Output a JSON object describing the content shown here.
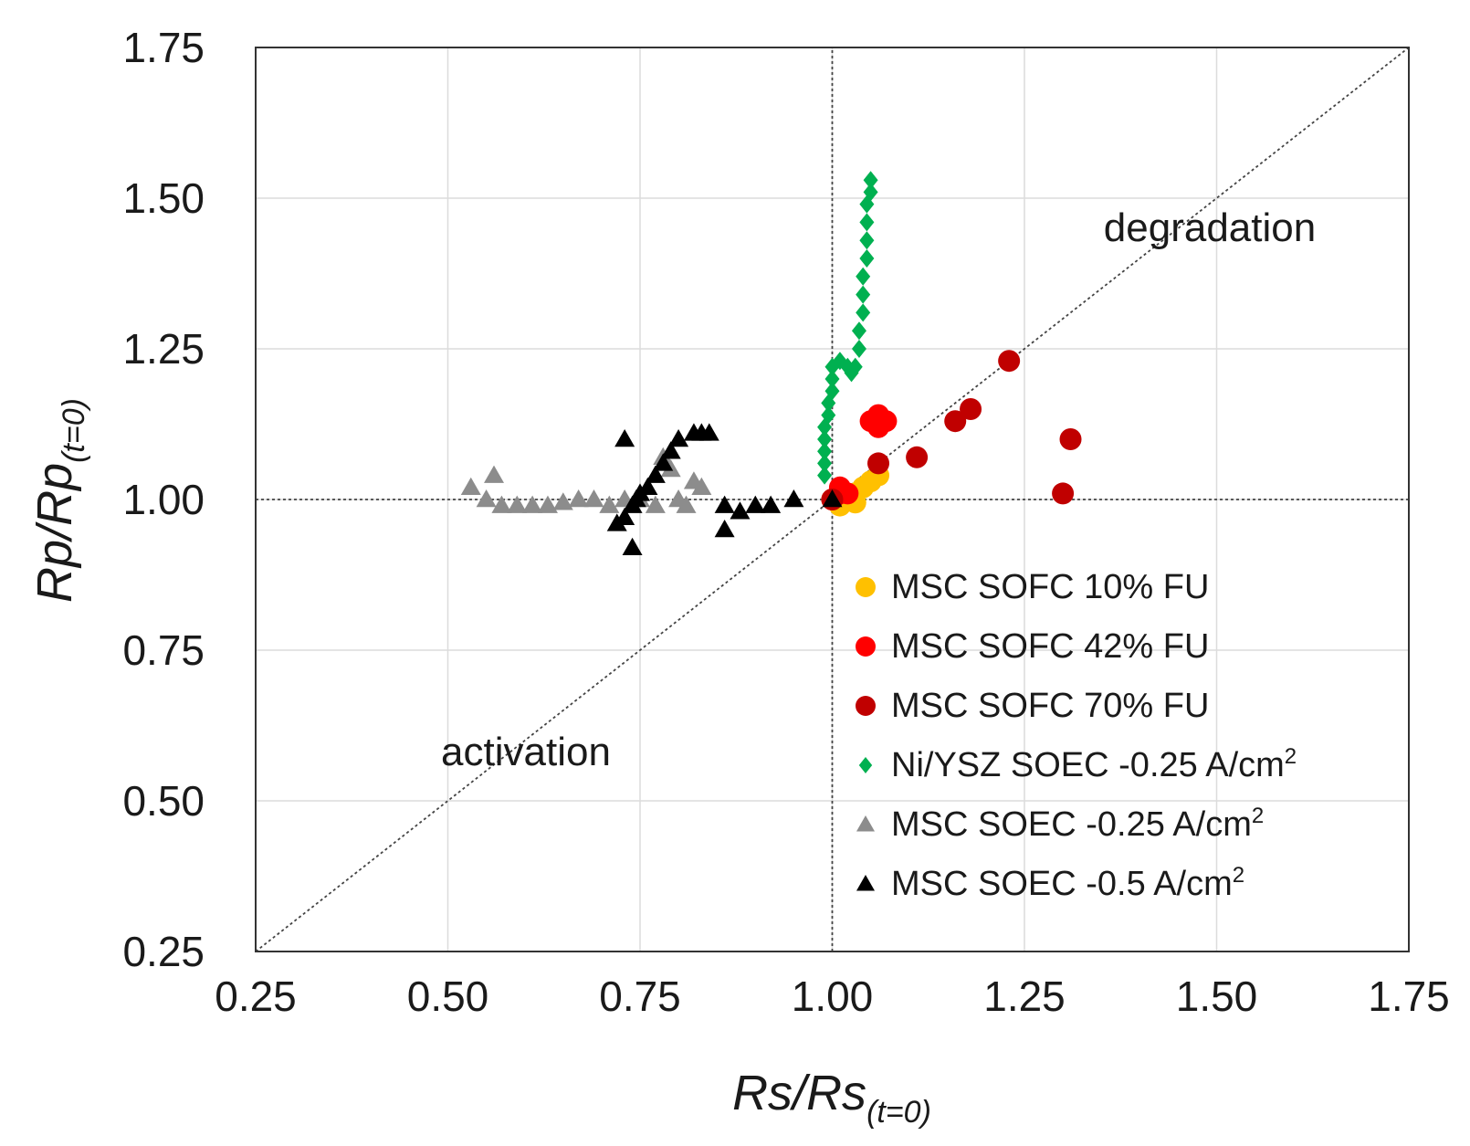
{
  "chart_data": {
    "type": "scatter",
    "xlabel": "Rs/Rs",
    "xlabel_sub": "(t=0)",
    "ylabel": "Rp/Rp",
    "ylabel_sub": "(t=0)",
    "xlim": [
      0.25,
      1.75
    ],
    "ylim": [
      0.25,
      1.75
    ],
    "xticks": [
      "0.25",
      "0.50",
      "0.75",
      "1.00",
      "1.25",
      "1.50",
      "1.75"
    ],
    "yticks": [
      "0.25",
      "0.50",
      "0.75",
      "1.00",
      "1.25",
      "1.50",
      "1.75"
    ],
    "grid": true,
    "reference_lines": [
      {
        "name": "diagonal",
        "from": [
          0.25,
          0.25
        ],
        "to": [
          1.75,
          1.75
        ],
        "style": "dotted"
      },
      {
        "name": "vertical-x1",
        "from": [
          1.0,
          0.25
        ],
        "to": [
          1.0,
          1.75
        ],
        "style": "dotted"
      },
      {
        "name": "horizontal-y1",
        "from": [
          0.25,
          1.0
        ],
        "to": [
          1.75,
          1.0
        ],
        "style": "dotted"
      }
    ],
    "annotations": [
      {
        "text": "degradation",
        "x": 1.57,
        "y": 1.45
      },
      {
        "text": "activation",
        "x": 0.58,
        "y": 0.58
      }
    ],
    "legend_position": "bottom-right",
    "series": [
      {
        "name": "MSC SOFC 10% FU",
        "sup": "",
        "marker": "circle",
        "color": "#FFC000",
        "points": [
          [
            1.0,
            1.0
          ],
          [
            1.01,
            0.99
          ],
          [
            1.02,
            1.0
          ],
          [
            1.03,
            1.01
          ],
          [
            1.04,
            1.02
          ],
          [
            1.05,
            1.03
          ],
          [
            1.06,
            1.04
          ],
          [
            1.03,
            0.995
          ]
        ]
      },
      {
        "name": "MSC SOFC 42% FU",
        "sup": "",
        "marker": "circle",
        "color": "#FF0000",
        "points": [
          [
            1.0,
            1.0
          ],
          [
            1.01,
            1.01
          ],
          [
            1.01,
            1.02
          ],
          [
            1.02,
            1.01
          ],
          [
            1.05,
            1.13
          ],
          [
            1.06,
            1.12
          ],
          [
            1.06,
            1.14
          ],
          [
            1.07,
            1.13
          ]
        ]
      },
      {
        "name": "MSC SOFC 70% FU",
        "sup": "",
        "marker": "circle",
        "color": "#C00000",
        "points": [
          [
            1.0,
            1.0
          ],
          [
            1.06,
            1.06
          ],
          [
            1.11,
            1.07
          ],
          [
            1.16,
            1.13
          ],
          [
            1.18,
            1.15
          ],
          [
            1.23,
            1.23
          ],
          [
            1.3,
            1.01
          ],
          [
            1.31,
            1.1
          ]
        ]
      },
      {
        "name": "Ni/YSZ SOEC -0.25 A/cm",
        "sup": "2",
        "marker": "diamond",
        "color": "#00B050",
        "points": [
          [
            0.99,
            1.04
          ],
          [
            0.99,
            1.06
          ],
          [
            0.99,
            1.08
          ],
          [
            0.99,
            1.1
          ],
          [
            0.99,
            1.12
          ],
          [
            0.995,
            1.14
          ],
          [
            0.995,
            1.16
          ],
          [
            1.0,
            1.18
          ],
          [
            1.0,
            1.2
          ],
          [
            1.0,
            1.22
          ],
          [
            1.01,
            1.23
          ],
          [
            1.02,
            1.22
          ],
          [
            1.025,
            1.21
          ],
          [
            1.03,
            1.22
          ],
          [
            1.035,
            1.25
          ],
          [
            1.035,
            1.28
          ],
          [
            1.04,
            1.31
          ],
          [
            1.04,
            1.34
          ],
          [
            1.04,
            1.37
          ],
          [
            1.045,
            1.4
          ],
          [
            1.045,
            1.43
          ],
          [
            1.045,
            1.46
          ],
          [
            1.045,
            1.49
          ],
          [
            1.05,
            1.51
          ],
          [
            1.05,
            1.53
          ]
        ]
      },
      {
        "name": "MSC SOEC -0.25 A/cm",
        "sup": "2",
        "marker": "triangle",
        "color": "#8C8C8C",
        "points": [
          [
            0.53,
            1.02
          ],
          [
            0.55,
            1.0
          ],
          [
            0.56,
            1.04
          ],
          [
            0.57,
            0.99
          ],
          [
            0.59,
            0.99
          ],
          [
            0.61,
            0.99
          ],
          [
            0.63,
            0.99
          ],
          [
            0.65,
            0.995
          ],
          [
            0.67,
            1.0
          ],
          [
            0.69,
            1.0
          ],
          [
            0.71,
            0.99
          ],
          [
            0.73,
            1.0
          ],
          [
            0.75,
            1.0
          ],
          [
            0.77,
            0.99
          ],
          [
            0.78,
            1.07
          ],
          [
            0.79,
            1.05
          ],
          [
            0.8,
            1.0
          ],
          [
            0.81,
            0.99
          ],
          [
            0.82,
            1.03
          ],
          [
            0.83,
            1.02
          ]
        ]
      },
      {
        "name": "MSC SOEC -0.5 A/cm",
        "sup": "2",
        "marker": "triangle",
        "color": "#000000",
        "points": [
          [
            0.72,
            0.96
          ],
          [
            0.73,
            0.97
          ],
          [
            0.74,
            0.99
          ],
          [
            0.745,
            1.0
          ],
          [
            0.75,
            1.01
          ],
          [
            0.76,
            1.02
          ],
          [
            0.77,
            1.04
          ],
          [
            0.78,
            1.06
          ],
          [
            0.79,
            1.08
          ],
          [
            0.8,
            1.1
          ],
          [
            0.73,
            1.1
          ],
          [
            0.74,
            0.92
          ],
          [
            0.82,
            1.11
          ],
          [
            0.83,
            1.11
          ],
          [
            0.84,
            1.11
          ],
          [
            0.86,
            0.95
          ],
          [
            0.86,
            0.99
          ],
          [
            0.88,
            0.98
          ],
          [
            0.9,
            0.99
          ],
          [
            0.92,
            0.99
          ],
          [
            0.95,
            1.0
          ],
          [
            1.0,
            1.0
          ]
        ]
      }
    ]
  }
}
